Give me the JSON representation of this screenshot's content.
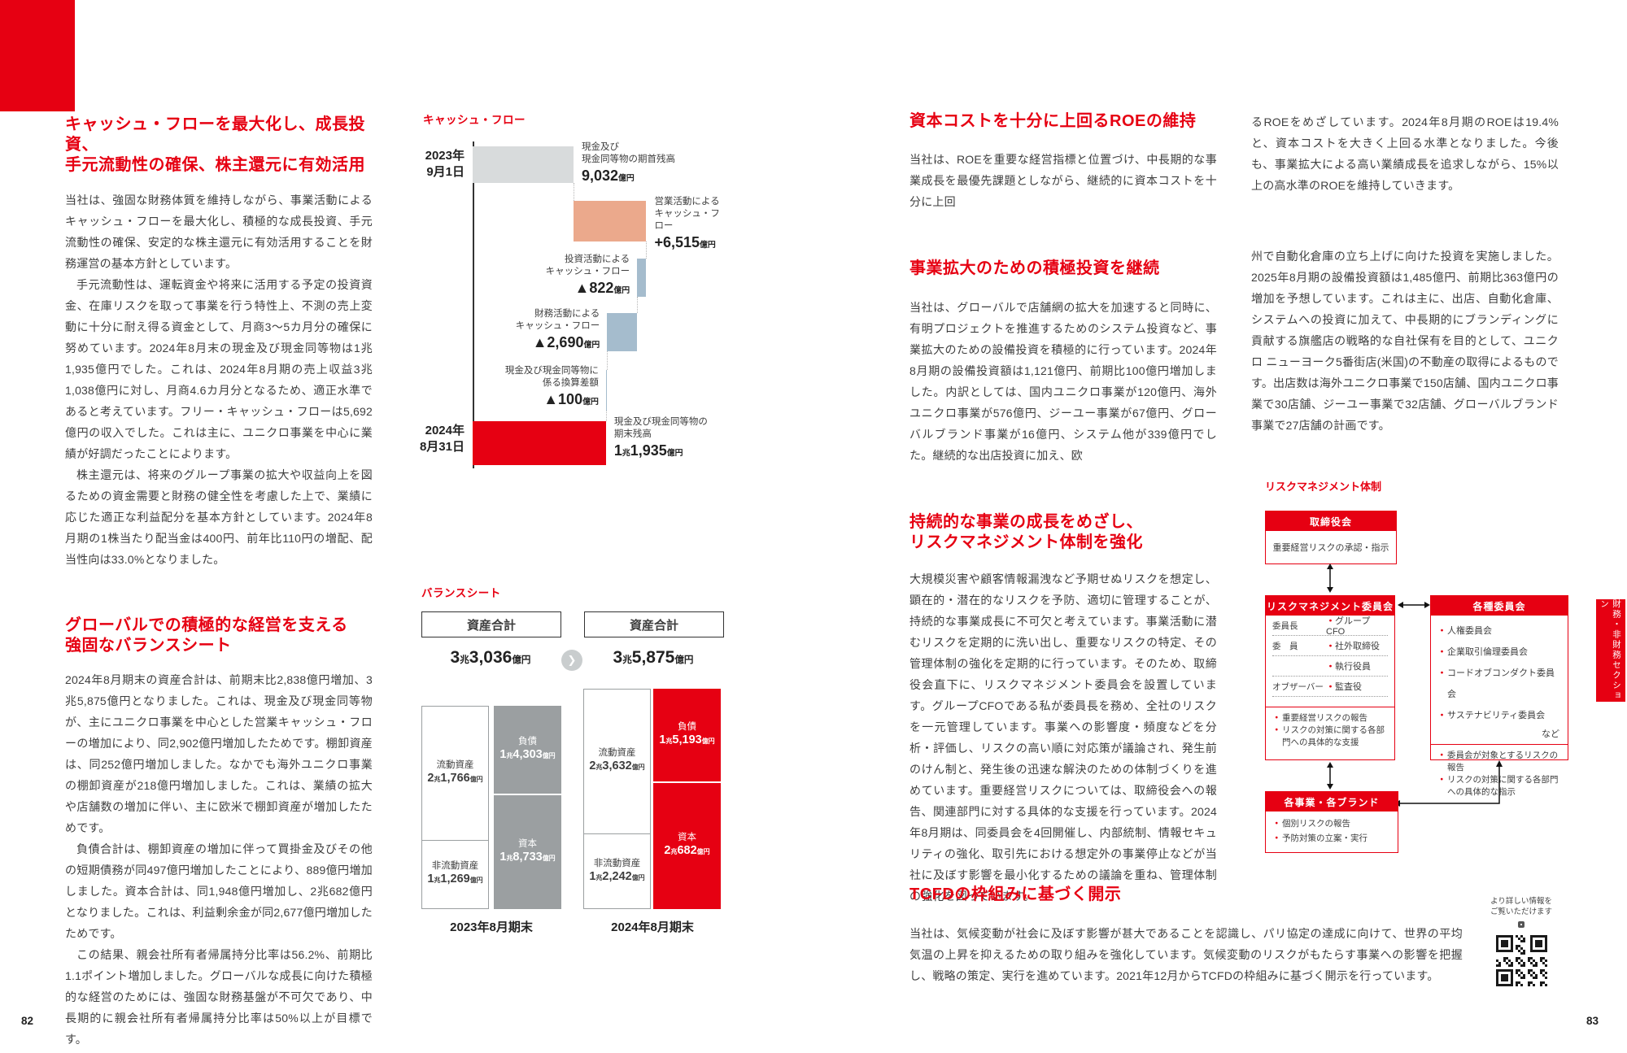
{
  "colors": {
    "accent": "#e60012",
    "text": "#3e3e3e",
    "grey_bar": "#d8dbdc",
    "orange_bar": "#eba98c",
    "blue_bar": "#a5bccd",
    "balance_grey": "#9b9fa1"
  },
  "page82": {
    "page_number": "82",
    "section1": {
      "heading": "キャッシュ・フローを最大化し、成長投資、\n手元流動性の確保、株主還元に有効活用",
      "p1": "当社は、強固な財務体質を維持しながら、事業活動によるキャッシュ・フローを最大化し、積極的な成長投資、手元流動性の確保、安定的な株主還元に有効活用することを財務運営の基本方針としています。",
      "p2": "手元流動性は、運転資金や将来に活用する予定の投資資金、在庫リスクを取って事業を行う特性上、不測の売上変動に十分に耐え得る資金として、月商3〜5カ月分の確保に努めています。2024年8月末の現金及び現金同等物は1兆1,935億円でした。これは、2024年8月期の売上収益3兆1,038億円に対し、月商4.6カ月分となるため、適正水準であると考えています。フリー・キャッシュ・フローは5,692億円の収入でした。これは主に、ユニクロ事業を中心に業績が好調だったことによります。",
      "p3": "株主還元は、将来のグループ事業の拡大や収益向上を図るための資金需要と財務の健全性を考慮した上で、業績に応じた適正な利益配分を基本方針としています。2024年8月期の1株当たり配当金は400円、前年比110円の増配、配当性向は33.0%となりました。"
    },
    "section2": {
      "heading": "グローバルでの積極的な経営を支える\n強固なバランスシート",
      "p1": "2024年8月期末の資産合計は、前期末比2,838億円増加、3兆5,875億円となりました。これは、現金及び現金同等物が、主にユニクロ事業を中心とした営業キャッシュ・フローの増加により、同2,902億円増加したためです。棚卸資産は、同252億円増加しました。なかでも海外ユニクロ事業の棚卸資産が218億円増加しました。これは、業績の拡大や店舗数の増加に伴い、主に欧米で棚卸資産が増加したためです。",
      "p2": "負債合計は、棚卸資産の増加に伴って買掛金及びその他の短期債務が同497億円増加したことにより、889億円増加しました。資本合計は、同1,948億円増加し、2兆682億円となりました。これは、利益剰余金が同2,677億円増加したためです。",
      "p3": "この結果、親会社所有者帰属持分比率は56.2%、前期比1.1ポイント増加しました。グローバルな成長に向けた積極的な経営のためには、強固な財務基盤が不可欠であり、中長期的に親会社所有者帰属持分比率は50%以上が目標です。"
    }
  },
  "cashflow_chart": {
    "type": "waterfall",
    "title": "キャッシュ・フロー",
    "unit": "億円",
    "items": [
      {
        "name": "現金及び\n現金同等物の期首残高",
        "value": 9032,
        "label": "9,032億円",
        "kind": "start",
        "side": "right",
        "axis_label": "2023年\n9月1日"
      },
      {
        "name": "営業活動による\nキャッシュ・フロー",
        "value": 6515,
        "label": "+6,515億円",
        "kind": "pos",
        "side": "right"
      },
      {
        "name": "投資活動による\nキャッシュ・フロー",
        "value": -822,
        "label": "▲822億円",
        "kind": "neg",
        "side": "left"
      },
      {
        "name": "財務活動による\nキャッシュ・フロー",
        "value": -2690,
        "label": "▲2,690億円",
        "kind": "neg",
        "side": "left"
      },
      {
        "name": "現金及び現金同等物に\n係る換算差額",
        "value": -100,
        "label": "▲100億円",
        "kind": "neg",
        "side": "left"
      },
      {
        "name": "現金及び現金同等物の\n期末残高",
        "value": 11935,
        "label": "1兆1,935億円",
        "kind": "total",
        "side": "right",
        "axis_label": "2024年\n8月31日"
      }
    ]
  },
  "balance_chart": {
    "type": "paired-stacked-bar",
    "title": "バランスシート",
    "unit": "億円",
    "header": "資産合計",
    "groups": [
      {
        "period": "2023年8月期末",
        "total": 33036,
        "total_label": "3兆3,036億円",
        "bar_color": "#9b9fa1",
        "assets": [
          {
            "name": "流動資産",
            "value": 21766,
            "label": "2兆1,766億円"
          },
          {
            "name": "非流動資産",
            "value": 11269,
            "label": "1兆1,269億円"
          }
        ],
        "capital": [
          {
            "name": "負債",
            "value": 14303,
            "label": "1兆4,303億円"
          },
          {
            "name": "資本",
            "value": 18733,
            "label": "1兆8,733億円"
          }
        ]
      },
      {
        "period": "2024年8月期末",
        "total": 35875,
        "total_label": "3兆5,875億円",
        "bar_color": "#e60012",
        "assets": [
          {
            "name": "流動資産",
            "value": 23632,
            "label": "2兆3,632億円"
          },
          {
            "name": "非流動資産",
            "value": 12242,
            "label": "1兆2,242億円"
          }
        ],
        "capital": [
          {
            "name": "負債",
            "value": 15193,
            "label": "1兆5,193億円"
          },
          {
            "name": "資本",
            "value": 20682,
            "label": "2兆682億円"
          }
        ]
      }
    ]
  },
  "page83": {
    "page_number": "83",
    "section_roe": {
      "heading": "資本コストを十分に上回るROEの維持",
      "col1": "当社は、ROEを重要な経営指標と位置づけ、中長期的な事業成長を最優先課題としながら、継続的に資本コストを十分に上回",
      "col2": "るROEをめざしています。2024年8月期のROEは19.4%と、資本コストを大きく上回る水準となりました。今後も、事業拡大による高い業績成長を追求しながら、15%以上の高水準のROEを維持していきます。"
    },
    "section_invest": {
      "heading": "事業拡大のための積極投資を継続",
      "col1": "当社は、グローバルで店舗網の拡大を加速すると同時に、有明プロジェクトを推進するためのシステム投資など、事業拡大のための設備投資を積極的に行っています。2024年8月期の設備投資額は1,121億円、前期比100億円増加しました。内訳としては、国内ユニクロ事業が120億円、海外ユニクロ事業が576億円、ジーユー事業が67億円、グローバルブランド事業が16億円、システム他が339億円でした。継続的な出店投資に加え、欧",
      "col2": "州で自動化倉庫の立ち上げに向けた投資を実施しました。2025年8月期の設備投資額は1,485億円、前期比363億円の増加を予想しています。これは主に、出店、自動化倉庫、システムへの投資に加えて、中長期的にブランディングに貢献する旗艦店の戦略的な自社保有を目的として、ユニクロ ニューヨーク5番街店(米国)の不動産の取得によるものです。出店数は海外ユニクロ事業で150店舗、国内ユニクロ事業で30店舗、ジーユー事業で32店舗、グローバルブランド事業で27店舗の計画です。"
    },
    "section_risk": {
      "heading": "持続的な事業の成長をめざし、\nリスクマネジメント体制を強化",
      "p1": "大規模災害や顧客情報漏洩など予期せぬリスクを想定し、顕在的・潜在的なリスクを予防、適切に管理することが、持続的な事業成長に不可欠と考えています。事業活動に潜むリスクを定期的に洗い出し、重要なリスクの特定、その管理体制の強化を定期的に行っています。そのため、取締役会直下に、リスクマネジメント委員会を設置しています。グループCFOである私が委員長を務め、全社のリスクを一元管理しています。事業への影響度・頻度などを分析・評価し、リスクの高い順に対応策が議論され、発生前のけん制と、発生後の迅速な解決のための体制づくりを進めています。重要経営リスクについては、取締役会への報告、関連部門に対する具体的な支援を行っています。2024年8月期は、同委員会を4回開催し、内部統制、情報セキュリティの強化、取引先における想定外の事業停止などが当社に及ぼす影響を最小化するための議論を重ね、管理体制の強化を図っています。"
    },
    "section_tcfd": {
      "heading": "TCFDの枠組みに基づく開示",
      "p1": "当社は、気候変動が社会に及ぼす影響が甚大であることを認識し、パリ協定の達成に向けて、世界の平均気温の上昇を抑えるための取り組みを強化しています。気候変動のリスクがもたらす事業への影響を把握し、戦略の策定、実行を進めています。2021年12月からTCFDの枠組みに基づく開示を行っています。"
    },
    "risk_diagram": {
      "title": "リスクマネジメント体制",
      "board": {
        "title": "取締役会",
        "note": "重要経営リスクの承認・指示"
      },
      "rm_committee": {
        "title": "リスクマネジメント委員会",
        "roles": [
          {
            "label": "委員長",
            "member": "グループCFO"
          },
          {
            "label": "委　員",
            "member": "社外取締役"
          },
          {
            "label": "",
            "member": "執行役員"
          },
          {
            "label": "オブザーバー",
            "member": "監査役"
          }
        ],
        "bullets": [
          "重要経営リスクの報告",
          "リスクの対策に関する各部門への具体的な支援"
        ]
      },
      "committees": {
        "title": "各種委員会",
        "items": [
          "人権委員会",
          "企業取引倫理委員会",
          "コードオブコンダクト委員会",
          "サステナビリティ委員会"
        ],
        "items_note": "など",
        "bullets": [
          "委員会が対象とするリスクの報告",
          "リスクの対策に関する各部門への具体的な指示"
        ]
      },
      "businesses": {
        "title": "各事業・各ブランド",
        "bullets": [
          "個別リスクの報告",
          "予防対策の立案・実行"
        ]
      }
    },
    "qr_note": "より詳しい情報を\nご覧いただけます",
    "side_tab": "財務・非財務セクション"
  }
}
